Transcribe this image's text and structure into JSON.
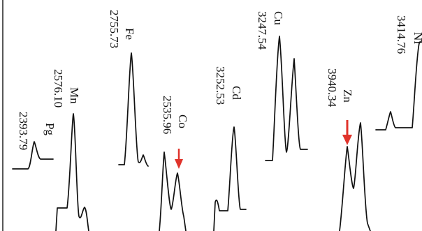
{
  "chart_data": {
    "type": "line",
    "title": "",
    "xlabel": "",
    "ylabel": "",
    "grid": false,
    "legend": "none",
    "line_color": "#111111",
    "marker_color": "#e0332b",
    "series": [
      {
        "element": "Pg",
        "wavelength": "2393.79",
        "values": [
          0,
          0.3,
          0.05,
          0.08
        ]
      },
      {
        "element": "Mn",
        "wavelength": "2576.10",
        "values": [
          0,
          0.9,
          0.05,
          0.22,
          0
        ]
      },
      {
        "element": "Fe",
        "wavelength": "2755.73",
        "values": [
          0,
          0.92,
          0.06,
          0.15,
          0.06
        ]
      },
      {
        "element": "Co",
        "wavelength": "2535.96",
        "values": [
          0,
          0.95,
          0.45,
          0.8,
          0.05
        ],
        "marker": "arrow"
      },
      {
        "element": "Cd",
        "wavelength": "3252.53",
        "values": [
          0,
          0.95,
          0.1,
          0.15,
          0.05
        ]
      },
      {
        "element": "Cu",
        "wavelength": "3247.54",
        "values": [
          0,
          0.95,
          0.2,
          0.75,
          0.1
        ]
      },
      {
        "element": "Zn",
        "wavelength": "3940.34",
        "values": [
          0,
          0.9,
          0.35,
          0.88,
          0.05
        ],
        "marker": "arrow"
      },
      {
        "element": "Ni",
        "wavelength": "3414.76",
        "values": [
          0,
          0.25,
          0.05,
          0.85,
          0.1
        ]
      }
    ]
  }
}
